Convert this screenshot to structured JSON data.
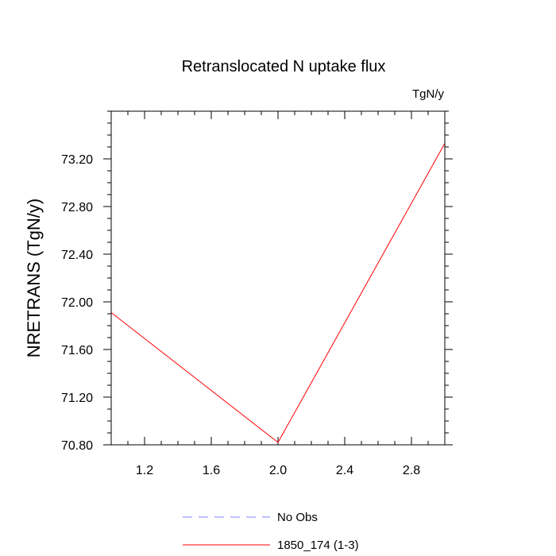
{
  "chart_data": {
    "type": "line",
    "title": "Retranslocated N uptake flux",
    "units_label": "TgN/y",
    "ylabel": "NRETRANS  (TgN/y)",
    "xlabel": "",
    "xlim": [
      1.0,
      3.0
    ],
    "ylim": [
      70.8,
      73.6
    ],
    "x_ticks": [
      1.2,
      1.6,
      2.0,
      2.4,
      2.8
    ],
    "x_tick_labels": [
      "1.2",
      "1.6",
      "2.0",
      "2.4",
      "2.8"
    ],
    "y_ticks": [
      70.8,
      71.2,
      71.6,
      72.0,
      72.4,
      72.8,
      73.2
    ],
    "y_tick_labels": [
      "70.80",
      "71.20",
      "71.60",
      "72.00",
      "72.40",
      "72.80",
      "73.20"
    ],
    "grid": false,
    "legend_position": "bottom-center",
    "series": [
      {
        "name": "No Obs",
        "color": "#8080ff",
        "dash": "dashed",
        "x": [],
        "values": []
      },
      {
        "name": "1850_174 (1-3)",
        "color": "#ff0000",
        "dash": "solid",
        "x": [
          1.0,
          2.0,
          3.0
        ],
        "values": [
          71.91,
          70.82,
          73.33
        ]
      }
    ]
  }
}
